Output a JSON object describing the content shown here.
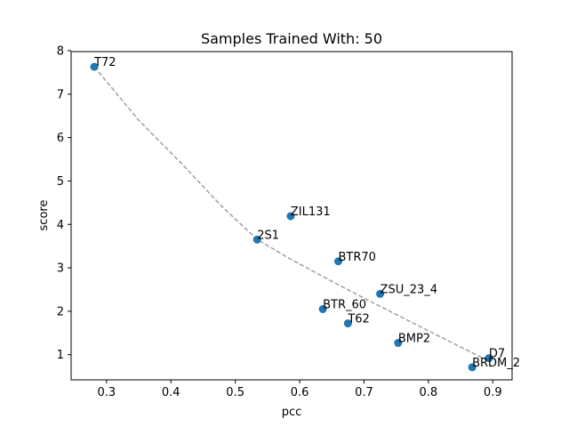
{
  "chart_data": {
    "type": "scatter",
    "title": "Samples Trained With: 50",
    "xlabel": "pcc",
    "ylabel": "score",
    "xlim": [
      0.245,
      0.93
    ],
    "ylim": [
      0.42,
      7.98
    ],
    "xticks": [
      0.3,
      0.4,
      0.5,
      0.6,
      0.7,
      0.8,
      0.9
    ],
    "yticks": [
      1,
      2,
      3,
      4,
      5,
      6,
      7,
      8
    ],
    "xtick_labels": [
      "0.3",
      "0.4",
      "0.5",
      "0.6",
      "0.7",
      "0.8",
      "0.9"
    ],
    "ytick_labels": [
      "1",
      "2",
      "3",
      "4",
      "5",
      "6",
      "7",
      "8"
    ],
    "grid": false,
    "point_color": "#1f77b4",
    "trend_color": "#a0a0a0",
    "points": [
      {
        "label": "T72",
        "x": 0.281,
        "y": 7.63
      },
      {
        "label": "ZIL131",
        "x": 0.586,
        "y": 4.19
      },
      {
        "label": "2S1",
        "x": 0.534,
        "y": 3.65
      },
      {
        "label": "BTR70",
        "x": 0.66,
        "y": 3.15
      },
      {
        "label": "ZSU_23_4",
        "x": 0.725,
        "y": 2.4
      },
      {
        "label": "BTR_60",
        "x": 0.636,
        "y": 2.05
      },
      {
        "label": "T62",
        "x": 0.675,
        "y": 1.72
      },
      {
        "label": "BMP2",
        "x": 0.753,
        "y": 1.27
      },
      {
        "label": "D7",
        "x": 0.894,
        "y": 0.92
      },
      {
        "label": "BRDM_2",
        "x": 0.868,
        "y": 0.71
      }
    ],
    "trend_line": {
      "style": "dashed",
      "x": [
        0.281,
        0.35,
        0.42,
        0.48,
        0.534,
        0.586,
        0.636,
        0.7,
        0.76,
        0.82,
        0.894
      ],
      "y": [
        7.63,
        6.4,
        5.35,
        4.4,
        3.65,
        3.2,
        2.8,
        2.3,
        1.85,
        1.4,
        0.85
      ]
    }
  }
}
